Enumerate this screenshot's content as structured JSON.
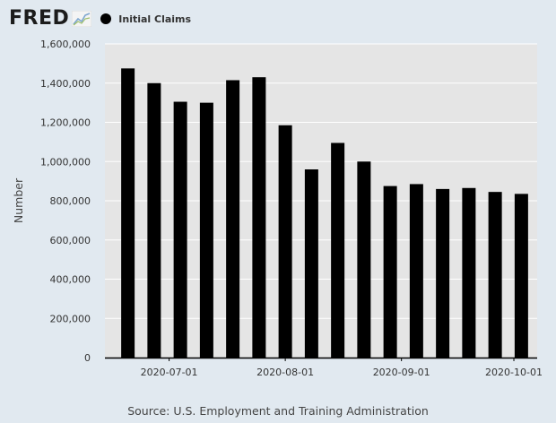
{
  "header": {
    "logo_text": "FRED",
    "logo_icon": "trend-line-icon"
  },
  "legend": {
    "items": [
      {
        "label": "Initial Claims",
        "color": "#000000"
      }
    ]
  },
  "source_text": "Source: U.S. Employment and Training Administration",
  "colors": {
    "page_background": "#e1e9f0",
    "plot_background": "#e5e5e5",
    "bar": "#000000"
  },
  "chart_data": {
    "type": "bar",
    "title": "",
    "xlabel": "",
    "ylabel": "Number",
    "ylim": [
      0,
      1600000
    ],
    "yticks": [
      0,
      200000,
      400000,
      600000,
      800000,
      1000000,
      1200000,
      1400000,
      1600000
    ],
    "ytick_labels": [
      "0",
      "200,000",
      "400,000",
      "600,000",
      "800,000",
      "1,000,000",
      "1,200,000",
      "1,400,000",
      "1,600,000"
    ],
    "xtick_labels": [
      "2020-07-01",
      "2020-08-01",
      "2020-09-01",
      "2020-10-01"
    ],
    "grid": true,
    "series": [
      {
        "name": "Initial Claims",
        "x": [
          "2020-06-20",
          "2020-06-27",
          "2020-07-04",
          "2020-07-11",
          "2020-07-18",
          "2020-07-25",
          "2020-08-01",
          "2020-08-08",
          "2020-08-15",
          "2020-08-22",
          "2020-08-29",
          "2020-09-05",
          "2020-09-12",
          "2020-09-19",
          "2020-09-26",
          "2020-10-03"
        ],
        "values": [
          1475000,
          1400000,
          1305000,
          1300000,
          1415000,
          1430000,
          1185000,
          960000,
          1095000,
          1000000,
          875000,
          885000,
          860000,
          865000,
          845000,
          835000
        ]
      }
    ]
  }
}
